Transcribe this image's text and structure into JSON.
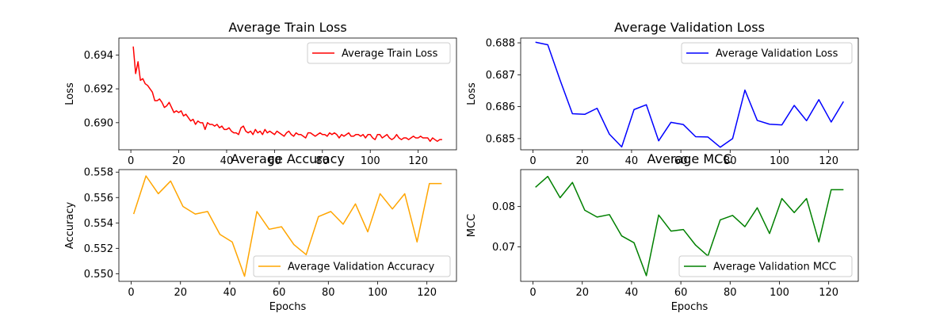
{
  "chart_data": [
    {
      "type": "line",
      "title": "Average Train Loss",
      "xlabel": "",
      "ylabel": "Loss",
      "xlim": [
        -5,
        136
      ],
      "ylim": [
        0.6884,
        0.695
      ],
      "xticks": [
        0,
        20,
        40,
        60,
        80,
        100,
        120
      ],
      "yticks": [
        0.69,
        0.692,
        0.694
      ],
      "ytick_labels": [
        "0.690",
        "0.692",
        "0.694"
      ],
      "legend": "top-right",
      "series": [
        {
          "name": "Average Train Loss",
          "color": "#ff0000",
          "x": [
            1,
            2,
            3,
            4,
            5,
            6,
            7,
            8,
            9,
            10,
            11,
            12,
            13,
            14,
            15,
            16,
            17,
            18,
            19,
            20,
            21,
            22,
            23,
            24,
            25,
            26,
            27,
            28,
            29,
            30,
            31,
            32,
            33,
            34,
            35,
            36,
            37,
            38,
            39,
            40,
            41,
            42,
            43,
            44,
            45,
            46,
            47,
            48,
            49,
            50,
            51,
            52,
            53,
            54,
            55,
            56,
            57,
            58,
            59,
            60,
            61,
            62,
            63,
            64,
            65,
            66,
            67,
            68,
            69,
            70,
            71,
            72,
            73,
            74,
            75,
            76,
            77,
            78,
            79,
            80,
            81,
            82,
            83,
            84,
            85,
            86,
            87,
            88,
            89,
            90,
            91,
            92,
            93,
            94,
            95,
            96,
            97,
            98,
            99,
            100,
            101,
            102,
            103,
            104,
            105,
            106,
            107,
            108,
            109,
            110,
            111,
            112,
            113,
            114,
            115,
            116,
            117,
            118,
            119,
            120,
            121,
            122,
            123,
            124,
            125,
            126,
            127,
            128,
            129,
            130
          ],
          "y": [
            0.6945,
            0.6929,
            0.6936,
            0.6925,
            0.6926,
            0.6923,
            0.6922,
            0.692,
            0.6918,
            0.6913,
            0.6913,
            0.6914,
            0.6912,
            0.6909,
            0.691,
            0.6912,
            0.6909,
            0.6906,
            0.6907,
            0.6906,
            0.6907,
            0.6904,
            0.6905,
            0.6903,
            0.6901,
            0.6902,
            0.6899,
            0.6901,
            0.69,
            0.69,
            0.6896,
            0.69,
            0.6899,
            0.6899,
            0.6898,
            0.6899,
            0.6897,
            0.6898,
            0.6896,
            0.6896,
            0.6897,
            0.6895,
            0.6894,
            0.6894,
            0.6893,
            0.6897,
            0.6898,
            0.6895,
            0.6894,
            0.6895,
            0.6893,
            0.6896,
            0.6894,
            0.6895,
            0.6893,
            0.6896,
            0.6894,
            0.6895,
            0.6894,
            0.6893,
            0.6895,
            0.6894,
            0.6893,
            0.6892,
            0.6894,
            0.6895,
            0.6893,
            0.6892,
            0.6894,
            0.6893,
            0.6893,
            0.6892,
            0.6891,
            0.6894,
            0.6894,
            0.6893,
            0.6892,
            0.6893,
            0.6894,
            0.6893,
            0.6893,
            0.6892,
            0.6894,
            0.6893,
            0.6894,
            0.6893,
            0.6891,
            0.6893,
            0.6892,
            0.6893,
            0.6894,
            0.6892,
            0.6892,
            0.6893,
            0.6893,
            0.6892,
            0.6893,
            0.6891,
            0.6893,
            0.6893,
            0.6891,
            0.689,
            0.6893,
            0.6893,
            0.6891,
            0.6892,
            0.6893,
            0.6891,
            0.689,
            0.6891,
            0.6893,
            0.6891,
            0.689,
            0.6891,
            0.6891,
            0.689,
            0.6891,
            0.6892,
            0.6891,
            0.6891,
            0.6892,
            0.6891,
            0.6891,
            0.6891,
            0.6889,
            0.6891,
            0.689,
            0.6889,
            0.689,
            0.689
          ]
        }
      ]
    },
    {
      "type": "line",
      "title": "Average Validation Loss",
      "xlabel": "",
      "ylabel": "Loss",
      "xlim": [
        -5,
        132
      ],
      "ylim": [
        0.68465,
        0.68815
      ],
      "xticks": [
        0,
        20,
        40,
        60,
        80,
        100,
        120
      ],
      "yticks": [
        0.685,
        0.686,
        0.687,
        0.688
      ],
      "ytick_labels": [
        "0.685",
        "0.686",
        "0.687",
        "0.688"
      ],
      "legend": "top-right",
      "series": [
        {
          "name": "Average Validation Loss",
          "color": "#0000ff",
          "x": [
            1,
            6,
            11,
            16,
            21,
            26,
            31,
            36,
            41,
            46,
            51,
            56,
            61,
            66,
            71,
            76,
            81,
            86,
            91,
            96,
            101,
            106,
            111,
            116,
            121,
            126
          ],
          "y": [
            0.68802,
            0.68794,
            0.68683,
            0.68578,
            0.68576,
            0.68595,
            0.68514,
            0.68474,
            0.68591,
            0.68606,
            0.68493,
            0.68551,
            0.68544,
            0.68506,
            0.68505,
            0.68473,
            0.685,
            0.68652,
            0.68557,
            0.68545,
            0.68543,
            0.68604,
            0.68556,
            0.68622,
            0.68552,
            0.68616
          ]
        }
      ]
    },
    {
      "type": "line",
      "title": "Average Accuracy",
      "xlabel": "Epochs",
      "ylabel": "Accuracy",
      "xlim": [
        -5,
        132
      ],
      "ylim": [
        0.5494,
        0.5582
      ],
      "xticks": [
        0,
        20,
        40,
        60,
        80,
        100,
        120
      ],
      "yticks": [
        0.55,
        0.552,
        0.554,
        0.556,
        0.558
      ],
      "ytick_labels": [
        "0.550",
        "0.552",
        "0.554",
        "0.556",
        "0.558"
      ],
      "legend": "bottom-right",
      "series": [
        {
          "name": "Average Validation Accuracy",
          "color": "#ffa500",
          "x": [
            1,
            6,
            11,
            16,
            21,
            26,
            31,
            36,
            41,
            46,
            51,
            56,
            61,
            66,
            71,
            76,
            81,
            86,
            91,
            96,
            101,
            106,
            111,
            116,
            121,
            126
          ],
          "y": [
            0.5547,
            0.5577,
            0.5563,
            0.5573,
            0.5553,
            0.5547,
            0.5549,
            0.5531,
            0.5525,
            0.5498,
            0.5549,
            0.5535,
            0.5537,
            0.5523,
            0.5515,
            0.5545,
            0.5549,
            0.5539,
            0.5555,
            0.5533,
            0.5563,
            0.5551,
            0.5563,
            0.5525,
            0.5571,
            0.5571
          ]
        }
      ]
    },
    {
      "type": "line",
      "title": "Average MCC",
      "xlabel": "Epochs",
      "ylabel": "MCC",
      "xlim": [
        -5,
        132
      ],
      "ylim": [
        0.0614,
        0.0892
      ],
      "xticks": [
        0,
        20,
        40,
        60,
        80,
        100,
        120
      ],
      "yticks": [
        0.07,
        0.08
      ],
      "ytick_labels": [
        "0.07",
        "0.08"
      ],
      "legend": "bottom-right",
      "series": [
        {
          "name": "Average Validation MCC",
          "color": "#008000",
          "x": [
            1,
            6,
            11,
            16,
            21,
            26,
            31,
            36,
            41,
            46,
            51,
            56,
            61,
            66,
            71,
            76,
            81,
            86,
            91,
            96,
            101,
            106,
            111,
            116,
            121,
            126
          ],
          "y": [
            0.0848,
            0.0875,
            0.0822,
            0.086,
            0.0791,
            0.0774,
            0.078,
            0.0727,
            0.071,
            0.0628,
            0.0779,
            0.0739,
            0.0743,
            0.0704,
            0.0677,
            0.0767,
            0.0778,
            0.075,
            0.0797,
            0.0733,
            0.082,
            0.0785,
            0.082,
            0.0712,
            0.0842,
            0.0842
          ]
        }
      ]
    }
  ]
}
